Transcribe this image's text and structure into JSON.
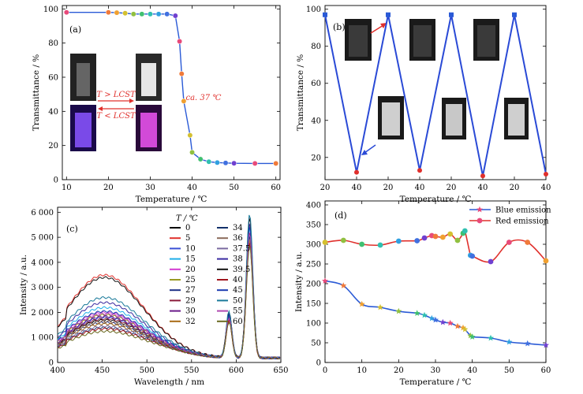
{
  "chart_data": [
    {
      "panel": "(a)",
      "type": "scatter",
      "xlabel": "Temperature / ℃",
      "ylabel": "Transmittance / %",
      "xlim": [
        9,
        61
      ],
      "ylim": [
        0,
        102
      ],
      "xticks": [
        10,
        20,
        30,
        40,
        50,
        60
      ],
      "yticks": [
        0,
        20,
        40,
        60,
        80,
        100
      ],
      "series": [
        {
          "x": [
            10,
            20,
            22,
            24,
            26,
            28,
            30,
            32,
            34,
            36,
            37,
            37.5,
            38,
            39.5,
            40,
            42,
            44,
            46,
            48,
            50,
            55,
            60
          ],
          "y": [
            98,
            98,
            97.8,
            97.5,
            97,
            97,
            97,
            97,
            97,
            96,
            81,
            62,
            46,
            26,
            16,
            12,
            10.5,
            10,
            9.8,
            9.6,
            9.5,
            9.5
          ]
        }
      ],
      "annotations": {
        "heat": "T > LCST",
        "cool": "T < LCST",
        "lcst": "ca. 37 ℃"
      }
    },
    {
      "panel": "(b)",
      "type": "line",
      "ylabel": "Transmittance / %",
      "xlabel": "Temperature / ℃",
      "ylim": [
        8,
        102
      ],
      "yticks": [
        20,
        40,
        60,
        80,
        100
      ],
      "categories": [
        "20",
        "40",
        "20",
        "40",
        "20",
        "40",
        "20",
        "40"
      ],
      "values": [
        97,
        12,
        97,
        13,
        97,
        10,
        97,
        11
      ]
    },
    {
      "panel": "(c)",
      "type": "line",
      "xlabel": "Wavelength / nm",
      "ylabel": "Intensity / a.u.",
      "xlim": [
        400,
        650
      ],
      "ylim": [
        0,
        6200
      ],
      "xticks": [
        400,
        450,
        500,
        550,
        600,
        650
      ],
      "yticks": [
        0,
        1000,
        2000,
        3000,
        4000,
        5000,
        6000
      ],
      "ytick_labels": [
        "0",
        "1 000",
        "2 000",
        "3 000",
        "4 000",
        "5 000",
        "6 000"
      ],
      "legend_title": "T / ℃",
      "legend_placement": "top-center",
      "series": [
        {
          "name": "0",
          "color": "#000000",
          "blue": 1500,
          "red": 4900
        },
        {
          "name": "5",
          "color": "#e0302c",
          "blue": 3300,
          "red": 5600
        },
        {
          "name": "10",
          "color": "#3a4fd6",
          "blue": 1600,
          "red": 5000
        },
        {
          "name": "15",
          "color": "#1eaee8",
          "blue": 2000,
          "red": 5200
        },
        {
          "name": "20",
          "color": "#d33ad1",
          "blue": 1800,
          "red": 5100
        },
        {
          "name": "25",
          "color": "#9a9a24",
          "blue": 1700,
          "red": 4800
        },
        {
          "name": "27",
          "color": "#1c2f86",
          "blue": 1400,
          "red": 4900
        },
        {
          "name": "29",
          "color": "#8a1a3a",
          "blue": 1550,
          "red": 5000
        },
        {
          "name": "30",
          "color": "#6a1a8a",
          "blue": 1650,
          "red": 5300
        },
        {
          "name": "32",
          "color": "#a86a14",
          "blue": 1350,
          "red": 4700
        },
        {
          "name": "34",
          "color": "#12306a",
          "blue": 1200,
          "red": 4900
        },
        {
          "name": "36",
          "color": "#8a6a5a",
          "blue": 1450,
          "red": 5300
        },
        {
          "name": "37.5",
          "color": "#7a6aa0",
          "blue": 1250,
          "red": 5000
        },
        {
          "name": "38",
          "color": "#3a2aa0",
          "blue": 2200,
          "red": 5400
        },
        {
          "name": "39.5",
          "color": "#101010",
          "blue": 3200,
          "red": 5600
        },
        {
          "name": "40",
          "color": "#a0141e",
          "blue": 1150,
          "red": 4600
        },
        {
          "name": "45",
          "color": "#1a3ab0",
          "blue": 1850,
          "red": 5300
        },
        {
          "name": "50",
          "color": "#1a7a9a",
          "blue": 2400,
          "red": 5800
        },
        {
          "name": "55",
          "color": "#b04ab0",
          "blue": 1750,
          "red": 5000
        },
        {
          "name": "60",
          "color": "#6a6a20",
          "blue": 1050,
          "red": 4500
        }
      ]
    },
    {
      "panel": "(d)",
      "type": "line",
      "xlabel": "Temperature / ℃",
      "ylabel": "Intensity / a.u.",
      "xlim": [
        0,
        60
      ],
      "ylim": [
        0,
        410
      ],
      "xticks": [
        0,
        10,
        20,
        30,
        40,
        50,
        60
      ],
      "yticks": [
        0,
        50,
        100,
        150,
        200,
        250,
        300,
        350,
        400
      ],
      "legend_placement": "top-right",
      "series": [
        {
          "name": "Blue emission",
          "color": "#2a5ad6",
          "x": [
            0,
            5,
            10,
            15,
            20,
            25,
            27,
            29,
            30,
            32,
            34,
            36,
            37.5,
            38,
            39.5,
            40,
            45,
            50,
            55,
            60
          ],
          "y": [
            207,
            195,
            148,
            140,
            130,
            125,
            120,
            112,
            108,
            102,
            100,
            92,
            88,
            84,
            68,
            65,
            62,
            52,
            48,
            44
          ]
        },
        {
          "name": "Red emission",
          "color": "#e0302c",
          "x": [
            0,
            5,
            10,
            15,
            20,
            25,
            27,
            29,
            30,
            32,
            34,
            36,
            37.5,
            38,
            39.5,
            40,
            45,
            50,
            55,
            60
          ],
          "y": [
            305,
            310,
            300,
            298,
            308,
            309,
            316,
            322,
            320,
            318,
            326,
            310,
            328,
            334,
            272,
            270,
            256,
            305,
            305,
            258
          ]
        }
      ]
    }
  ]
}
